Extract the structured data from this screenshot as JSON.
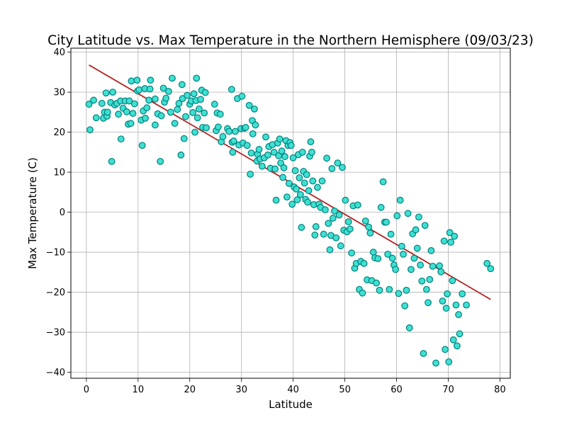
{
  "chart_data": {
    "type": "scatter",
    "title": "City Latitude vs. Max Temperature in the Northern Hemisphere (09/03/23)",
    "xlabel": "Latitude",
    "ylabel": "Max Temperature (C)",
    "xlim": [
      -3,
      82
    ],
    "ylim": [
      -41.5,
      41
    ],
    "xticks": [
      0,
      10,
      20,
      30,
      40,
      50,
      60,
      70,
      80
    ],
    "yticks": [
      -40,
      -30,
      -20,
      -10,
      0,
      10,
      20,
      30,
      40
    ],
    "grid": true,
    "marker_fill": "#40e0d0",
    "marker_edge": "#008080",
    "regression_color": "#b22222",
    "regression_line": {
      "x": [
        0.5,
        78.2
      ],
      "y": [
        36.8,
        -21.8
      ]
    },
    "points": [
      [
        0.5,
        27
      ],
      [
        0.7,
        20.6
      ],
      [
        1.4,
        28
      ],
      [
        1.9,
        23.6
      ],
      [
        3,
        27.2
      ],
      [
        3.3,
        23.5
      ],
      [
        3.5,
        25
      ],
      [
        3.8,
        29.8
      ],
      [
        4,
        24
      ],
      [
        4.1,
        25
      ],
      [
        4.7,
        27.4
      ],
      [
        4.9,
        12.7
      ],
      [
        5.1,
        30
      ],
      [
        5.5,
        26.8
      ],
      [
        5.9,
        27.2
      ],
      [
        6.2,
        24.5
      ],
      [
        6.6,
        27.8
      ],
      [
        6.7,
        18.3
      ],
      [
        7.1,
        26
      ],
      [
        7.5,
        27.8
      ],
      [
        7.8,
        25.1
      ],
      [
        8.1,
        22
      ],
      [
        8.3,
        27.8
      ],
      [
        8.6,
        22.2
      ],
      [
        8.7,
        32.8
      ],
      [
        9,
        24.7
      ],
      [
        9.3,
        27.1
      ],
      [
        9.8,
        33
      ],
      [
        9.9,
        30.3
      ],
      [
        10.2,
        30.6
      ],
      [
        10.6,
        23
      ],
      [
        10.8,
        16.7
      ],
      [
        11,
        25.3
      ],
      [
        11.3,
        30.9
      ],
      [
        11.4,
        23.5
      ],
      [
        11.7,
        26.1
      ],
      [
        12.1,
        28
      ],
      [
        12.3,
        30.8
      ],
      [
        12.4,
        33
      ],
      [
        13.3,
        21.8
      ],
      [
        13.3,
        28.3
      ],
      [
        13.8,
        24.6
      ],
      [
        14.3,
        12.7
      ],
      [
        14.5,
        24.1
      ],
      [
        14.9,
        31
      ],
      [
        15.1,
        27.5
      ],
      [
        15.4,
        28.5
      ],
      [
        15.9,
        30.2
      ],
      [
        16.3,
        25
      ],
      [
        16.6,
        33.5
      ],
      [
        17.1,
        22.2
      ],
      [
        17.6,
        25.7
      ],
      [
        17.9,
        27.2
      ],
      [
        18.3,
        14.3
      ],
      [
        18.5,
        31.9
      ],
      [
        18.6,
        28.4
      ],
      [
        18.9,
        18.4
      ],
      [
        19.2,
        23.9
      ],
      [
        19.5,
        29.2
      ],
      [
        20,
        27
      ],
      [
        20.3,
        27.8
      ],
      [
        20.6,
        24.9
      ],
      [
        20.8,
        29.6
      ],
      [
        21,
        20
      ],
      [
        21.2,
        27.9
      ],
      [
        21.3,
        33.5
      ],
      [
        21.5,
        23.6
      ],
      [
        21.8,
        25.8
      ],
      [
        22.1,
        28.2
      ],
      [
        22.3,
        30.5
      ],
      [
        22.5,
        21.2
      ],
      [
        22.8,
        24.8
      ],
      [
        23,
        29.9
      ],
      [
        23.2,
        21.1
      ],
      [
        24.8,
        27
      ],
      [
        25.1,
        20.4
      ],
      [
        25.3,
        24.8
      ],
      [
        25.5,
        21.3
      ],
      [
        25.9,
        24.5
      ],
      [
        26.1,
        17.6
      ],
      [
        26.4,
        18.9
      ],
      [
        27.3,
        20.9
      ],
      [
        27.6,
        20.2
      ],
      [
        28.1,
        30.7
      ],
      [
        28.2,
        17.5
      ],
      [
        28.3,
        15
      ],
      [
        28.5,
        17.8
      ],
      [
        28.8,
        20.2
      ],
      [
        29.2,
        28.4
      ],
      [
        29.5,
        16.8
      ],
      [
        29.9,
        20.9
      ],
      [
        30.1,
        29
      ],
      [
        30.3,
        17.3
      ],
      [
        30.6,
        21
      ],
      [
        30.8,
        21.2
      ],
      [
        31.1,
        16.7
      ],
      [
        31.5,
        26.7
      ],
      [
        31.7,
        9.5
      ],
      [
        31.9,
        14.8
      ],
      [
        32.1,
        22.9
      ],
      [
        32.2,
        19.6
      ],
      [
        32.5,
        25.8
      ],
      [
        32.7,
        21.8
      ],
      [
        33,
        12.8
      ],
      [
        33.1,
        14.5
      ],
      [
        33.4,
        15.7
      ],
      [
        33.6,
        13.3
      ],
      [
        34,
        11.5
      ],
      [
        34.4,
        13.6
      ],
      [
        34.7,
        18.8
      ],
      [
        35.1,
        14.3
      ],
      [
        35.3,
        16.4
      ],
      [
        35.6,
        11
      ],
      [
        36,
        16.9
      ],
      [
        36.3,
        15
      ],
      [
        36.5,
        10.8
      ],
      [
        36.7,
        3
      ],
      [
        37,
        17.3
      ],
      [
        37.2,
        14.1
      ],
      [
        37.4,
        18.3
      ],
      [
        37.6,
        12.3
      ],
      [
        37.8,
        15.3
      ],
      [
        38,
        8.7
      ],
      [
        38.2,
        11.1
      ],
      [
        38.4,
        13.9
      ],
      [
        38.6,
        17.9
      ],
      [
        38.8,
        3.8
      ],
      [
        39,
        16.7
      ],
      [
        39.2,
        7.2
      ],
      [
        39.4,
        17.4
      ],
      [
        39.6,
        16.7
      ],
      [
        39.8,
        2
      ],
      [
        40,
        13.6
      ],
      [
        40.2,
        6.3
      ],
      [
        40.4,
        10.4
      ],
      [
        40.6,
        5.8
      ],
      [
        40.8,
        3.1
      ],
      [
        41,
        14.4
      ],
      [
        41.2,
        8.6
      ],
      [
        41.4,
        4.4
      ],
      [
        41.6,
        -3.8
      ],
      [
        41.8,
        15
      ],
      [
        42,
        10.2
      ],
      [
        42.2,
        7.3
      ],
      [
        42.4,
        3.2
      ],
      [
        42.6,
        9.4
      ],
      [
        42.8,
        2.5
      ],
      [
        43,
        5.4
      ],
      [
        43.2,
        14
      ],
      [
        43.4,
        17.6
      ],
      [
        43.6,
        15
      ],
      [
        43.8,
        7.8
      ],
      [
        44,
        1.9
      ],
      [
        44.2,
        -5.7
      ],
      [
        44.4,
        -3.6
      ],
      [
        44.7,
        6.2
      ],
      [
        45,
        2
      ],
      [
        45.3,
        1.2
      ],
      [
        45.6,
        7.8
      ],
      [
        45.9,
        -5.5
      ],
      [
        46.2,
        0.6
      ],
      [
        46.5,
        13.5
      ],
      [
        46.8,
        -2.8
      ],
      [
        47.1,
        -9.4
      ],
      [
        47.3,
        -5.8
      ],
      [
        47.5,
        10.9
      ],
      [
        47.7,
        -1.5
      ],
      [
        48,
        0.3
      ],
      [
        48.3,
        -6.4
      ],
      [
        48.6,
        12.3
      ],
      [
        48.9,
        -0.7
      ],
      [
        49.2,
        -8.4
      ],
      [
        49.5,
        11.2
      ],
      [
        49.8,
        -4.5
      ],
      [
        50.1,
        3
      ],
      [
        50.4,
        -4.9
      ],
      [
        50.7,
        -2.4
      ],
      [
        51,
        -4.2
      ],
      [
        51.3,
        -10.2
      ],
      [
        51.6,
        1.6
      ],
      [
        51.9,
        -14
      ],
      [
        52.2,
        -12.8
      ],
      [
        52.5,
        1.8
      ],
      [
        52.8,
        -19.3
      ],
      [
        53.1,
        -12.3
      ],
      [
        53.4,
        -20.2
      ],
      [
        53.7,
        -12.8
      ],
      [
        54,
        -2.2
      ],
      [
        54.3,
        -16.9
      ],
      [
        54.6,
        -3.7
      ],
      [
        54.9,
        -5.2
      ],
      [
        55.2,
        -17.1
      ],
      [
        55.5,
        -10
      ],
      [
        55.8,
        -11.4
      ],
      [
        56.1,
        -17.7
      ],
      [
        56.4,
        -11.6
      ],
      [
        56.7,
        -19.5
      ],
      [
        57,
        1.2
      ],
      [
        57.4,
        7.6
      ],
      [
        57.7,
        -2.5
      ],
      [
        58,
        -2.5
      ],
      [
        58.3,
        -10.5
      ],
      [
        58.6,
        -19.3
      ],
      [
        58.9,
        -5.5
      ],
      [
        59.2,
        -11.5
      ],
      [
        59.5,
        -13.2
      ],
      [
        59.8,
        -14.3
      ],
      [
        60.1,
        -0.9
      ],
      [
        60.4,
        -20.3
      ],
      [
        60.7,
        3
      ],
      [
        61,
        -8.5
      ],
      [
        61.3,
        -10.5
      ],
      [
        61.6,
        -23.4
      ],
      [
        61.9,
        -19.5
      ],
      [
        62.2,
        -0.3
      ],
      [
        62.5,
        -28.9
      ],
      [
        62.8,
        -14.3
      ],
      [
        63.1,
        -5.4
      ],
      [
        63.4,
        -11.5
      ],
      [
        63.7,
        -4.4
      ],
      [
        64,
        -9
      ],
      [
        64.3,
        -1.2
      ],
      [
        64.6,
        -13.2
      ],
      [
        64.9,
        -17.2
      ],
      [
        65.2,
        -35.3
      ],
      [
        65.5,
        -3.3
      ],
      [
        65.8,
        -19.3
      ],
      [
        66.1,
        -22.6
      ],
      [
        66.4,
        -16.8
      ],
      [
        66.7,
        -9.6
      ],
      [
        67,
        -13.5
      ],
      [
        67.6,
        -37.7
      ],
      [
        68.3,
        -13.4
      ],
      [
        68.6,
        -14.9
      ],
      [
        68.9,
        -22.2
      ],
      [
        69.2,
        -7.2
      ],
      [
        69.4,
        -34.3
      ],
      [
        69.6,
        -24
      ],
      [
        69.8,
        -20.4
      ],
      [
        70.1,
        -37.4
      ],
      [
        70.3,
        -5.1
      ],
      [
        70.5,
        -7.5
      ],
      [
        70.8,
        -17.1
      ],
      [
        71,
        -31.9
      ],
      [
        71.2,
        -6
      ],
      [
        71.5,
        -23.2
      ],
      [
        71.7,
        -33.4
      ],
      [
        72,
        -25.6
      ],
      [
        72.2,
        -30.4
      ],
      [
        72.7,
        -20.4
      ],
      [
        73.5,
        -23.2
      ],
      [
        77.5,
        -12.8
      ],
      [
        78.2,
        -14.1
      ]
    ]
  }
}
